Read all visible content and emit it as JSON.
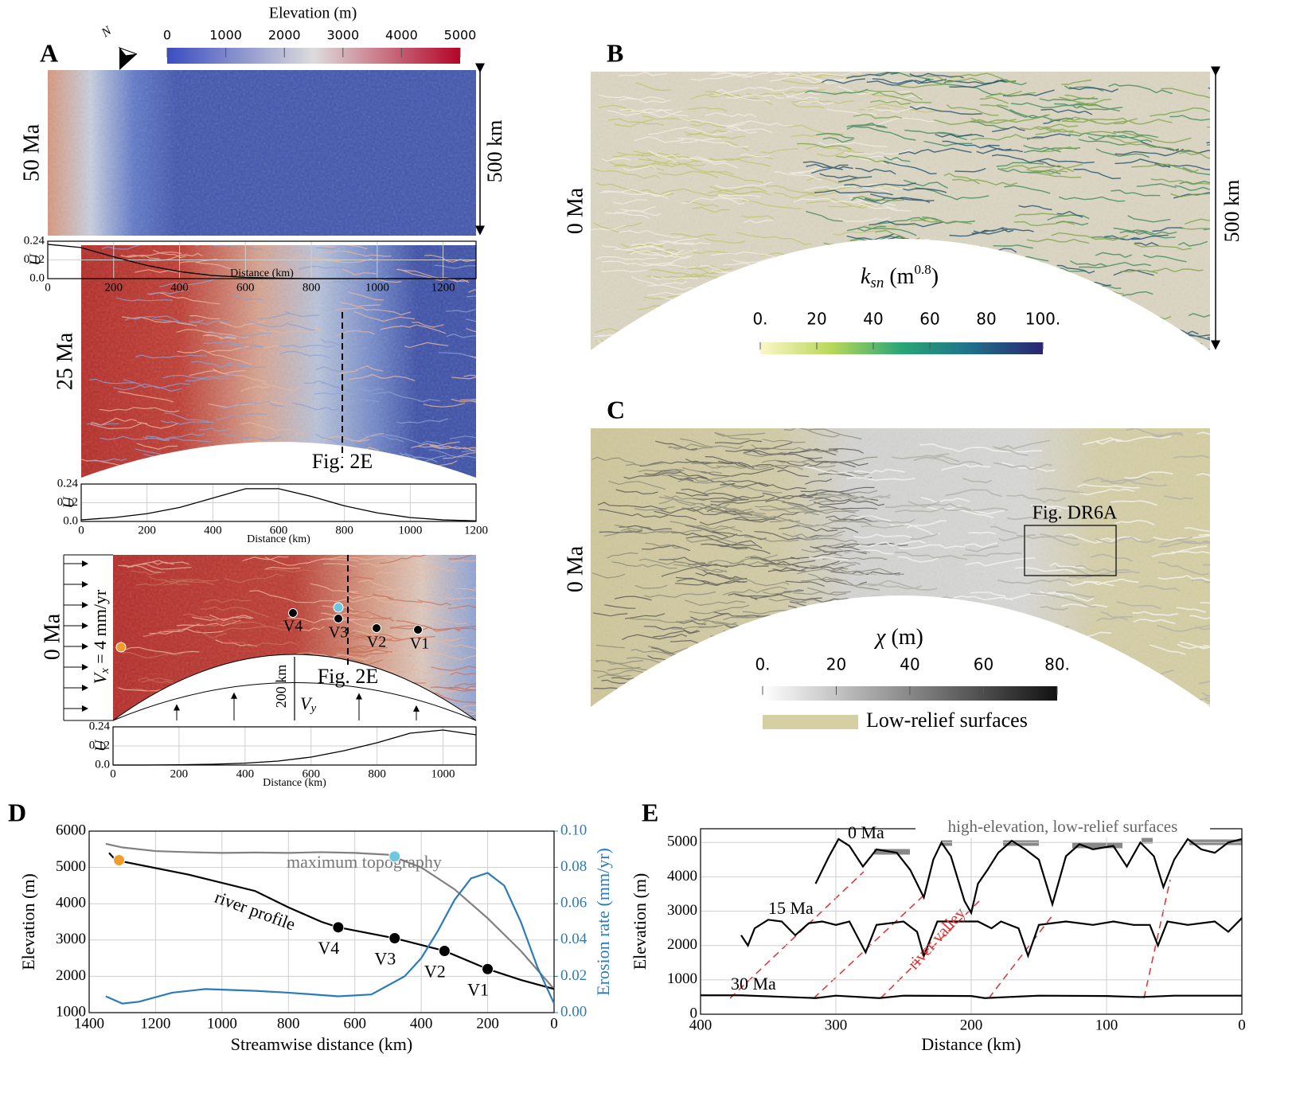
{
  "figure": {
    "panel_labels": [
      "A",
      "B",
      "C",
      "D",
      "E"
    ],
    "panel_a": {
      "colorbar": {
        "title": "Elevation (m)",
        "lim": [
          0,
          5000
        ],
        "ticks": [
          0,
          1000,
          2000,
          3000,
          4000,
          5000
        ]
      },
      "north": "N",
      "maps": [
        {
          "age": "50 Ma",
          "scale": "500 km"
        },
        {
          "age": "25 Ma",
          "ref": "Fig. 2E"
        },
        {
          "age": "0 Ma",
          "ref": "Fig. 2E",
          "vx_symbol": "V",
          "vx_sub": "x",
          "vx_text": " = 4 mm/yr",
          "width": "200 km",
          "vy_symbol": "V",
          "vy_sub": "y",
          "points": [
            "V4",
            "V3",
            "V2",
            "V1"
          ]
        }
      ]
    },
    "panel_b": {
      "age": "0 Ma",
      "scale": "500 km",
      "colorbar": {
        "symbol": "k",
        "sub": "sn",
        "unit": " (m",
        "sup": "0.8",
        "close": ")",
        "lim": [
          0,
          100
        ],
        "ticks": [
          {
            "value": 0,
            "label": "0."
          },
          20,
          40,
          60,
          80,
          {
            "value": 100,
            "label": "100."
          }
        ]
      }
    },
    "panel_c": {
      "age": "0 Ma",
      "ref": "Fig. DR6A",
      "colorbar": {
        "symbol": "χ",
        "unit": " (m)",
        "lim": [
          0,
          80
        ],
        "ticks": [
          {
            "value": 0,
            "label": "0."
          },
          20,
          40,
          60,
          {
            "value": 80,
            "label": "80."
          }
        ]
      },
      "legend": "Low-relief surfaces"
    }
  },
  "chart_data": [
    {
      "type": "line",
      "ylabel": "U",
      "xlabel": "Distance (km)",
      "color": "#000000",
      "grid": true,
      "x": [
        0,
        100,
        200,
        300,
        400,
        500,
        600,
        700,
        800,
        900,
        1000,
        1100,
        1200,
        1300
      ],
      "values": [
        0.22,
        0.2,
        0.14,
        0.085,
        0.045,
        0.02,
        0.008,
        0.003,
        0,
        0,
        0,
        0,
        0,
        0
      ],
      "xlim": [
        0,
        1300
      ],
      "ylim": [
        0,
        0.24
      ],
      "xticks": [
        0,
        200,
        400,
        600,
        800,
        1000,
        1200
      ],
      "yticks": [
        {
          "value": 0,
          "label": "0.0"
        },
        0.12,
        0.24
      ]
    },
    {
      "type": "line",
      "ylabel": "U",
      "xlabel": "Distance (km)",
      "color": "#000000",
      "grid": true,
      "x": [
        0,
        100,
        200,
        300,
        400,
        500,
        600,
        700,
        800,
        900,
        1000,
        1100,
        1200
      ],
      "values": [
        0.01,
        0.025,
        0.05,
        0.09,
        0.15,
        0.21,
        0.21,
        0.16,
        0.1,
        0.055,
        0.025,
        0.01,
        0.004
      ],
      "xlim": [
        0,
        1200
      ],
      "ylim": [
        0,
        0.24
      ],
      "xticks": [
        0,
        200,
        400,
        600,
        800,
        1000,
        1200
      ],
      "yticks": [
        {
          "value": 0,
          "label": "0.0"
        },
        0.12,
        0.24
      ]
    },
    {
      "type": "line",
      "ylabel": "U",
      "xlabel": "Distance (km)",
      "color": "#000000",
      "grid": true,
      "x": [
        0,
        100,
        200,
        300,
        400,
        500,
        600,
        700,
        800,
        900,
        1000,
        1100
      ],
      "values": [
        0,
        0,
        0.002,
        0.005,
        0.012,
        0.025,
        0.05,
        0.09,
        0.14,
        0.2,
        0.22,
        0.19
      ],
      "xlim": [
        0,
        1100
      ],
      "ylim": [
        0,
        0.24
      ],
      "xticks": [
        0,
        200,
        400,
        600,
        800,
        1000
      ],
      "yticks": [
        {
          "value": 0,
          "label": "0.0"
        },
        0.12,
        0.24
      ]
    },
    {
      "type": "line",
      "xlabel": "Streamwise distance (km)",
      "ylabel": "Elevation (m)",
      "y2label": "Erosion rate (mm/yr)",
      "grid": true,
      "xlim": [
        1400,
        0
      ],
      "ylim": [
        1000,
        6000
      ],
      "y2lim": [
        0,
        0.1
      ],
      "xticks": [
        1400,
        1200,
        1000,
        800,
        600,
        400,
        200,
        0
      ],
      "yticks": [
        1000,
        2000,
        3000,
        4000,
        5000,
        6000
      ],
      "y2ticks": [
        {
          "value": 0,
          "label": "0.00"
        },
        0.02,
        0.04,
        0.06,
        0.08,
        {
          "value": 0.1,
          "label": "0.10"
        }
      ],
      "series": [
        {
          "name": "maximum topography",
          "color": "#808080",
          "x": [
            1350,
            1300,
            1200,
            1100,
            1000,
            900,
            800,
            700,
            600,
            500,
            400,
            300,
            200,
            100,
            0
          ],
          "values": [
            5650,
            5550,
            5450,
            5420,
            5400,
            5410,
            5400,
            5420,
            5400,
            5350,
            5000,
            4400,
            3600,
            2700,
            1650
          ]
        },
        {
          "name": "river profile",
          "color": "#000000",
          "x": [
            1340,
            1320,
            1100,
            900,
            800,
            700,
            650,
            480,
            330,
            200,
            100,
            0
          ],
          "values": [
            5400,
            5200,
            4800,
            4350,
            3900,
            3500,
            3350,
            3050,
            2700,
            2200,
            1900,
            1650
          ]
        },
        {
          "color": "#2b7bb9",
          "axis": "y2",
          "x": [
            1350,
            1300,
            1250,
            1150,
            1050,
            900,
            800,
            650,
            550,
            450,
            400,
            350,
            300,
            250,
            200,
            150,
            100,
            50,
            0
          ],
          "values": [
            0.009,
            0.005,
            0.006,
            0.011,
            0.013,
            0.012,
            0.011,
            0.009,
            0.01,
            0.02,
            0.03,
            0.045,
            0.062,
            0.074,
            0.077,
            0.07,
            0.05,
            0.025,
            0.005
          ]
        }
      ],
      "points": [
        {
          "x": 1310,
          "y": 5200,
          "color": "#f39c2b"
        },
        {
          "x": 480,
          "y": 5300,
          "color": "#6ec6e0"
        },
        {
          "x": 650,
          "y": 3350,
          "color": "#000000",
          "label": "V4"
        },
        {
          "x": 480,
          "y": 3050,
          "color": "#000000",
          "label": "V3"
        },
        {
          "x": 330,
          "y": 2700,
          "color": "#000000",
          "label": "V2"
        },
        {
          "x": 200,
          "y": 2200,
          "color": "#000000",
          "label": "V1"
        }
      ]
    },
    {
      "type": "line",
      "xlabel": "Distance (km)",
      "ylabel": "Elevation (m)",
      "grid": true,
      "xlim": [
        400,
        0
      ],
      "ylim": [
        0,
        5400
      ],
      "xticks": [
        400,
        300,
        200,
        100,
        0
      ],
      "yticks": [
        0,
        1000,
        2000,
        3000,
        4000,
        5000
      ],
      "annotation": "high-elevation, low-relief surfaces",
      "valley_label": "river valley",
      "series": [
        {
          "name": "0 Ma",
          "color": "#000000",
          "x": [
            315,
            305,
            298,
            290,
            280,
            270,
            255,
            245,
            235,
            228,
            222,
            215,
            205,
            200,
            195,
            188,
            180,
            170,
            160,
            150,
            140,
            130,
            120,
            110,
            95,
            85,
            75,
            65,
            58,
            50,
            40,
            30,
            20,
            10,
            0
          ],
          "values": [
            3800,
            4600,
            5100,
            4900,
            4300,
            4800,
            4700,
            4200,
            3400,
            4500,
            5000,
            4600,
            3300,
            2950,
            3800,
            4200,
            4700,
            5050,
            4800,
            4500,
            3200,
            4600,
            4950,
            4800,
            4900,
            4300,
            5000,
            4600,
            3700,
            4500,
            5100,
            4800,
            4700,
            5000,
            5100
          ]
        },
        {
          "name": "15 Ma",
          "color": "#000000",
          "x": [
            370,
            365,
            360,
            350,
            340,
            330,
            320,
            310,
            300,
            290,
            278,
            270,
            250,
            240,
            235,
            225,
            210,
            195,
            185,
            178,
            165,
            158,
            150,
            130,
            110,
            95,
            80,
            68,
            62,
            55,
            40,
            20,
            10,
            0
          ],
          "values": [
            2300,
            2000,
            2500,
            2750,
            2700,
            2300,
            2650,
            2700,
            2600,
            2700,
            1800,
            2600,
            2700,
            2400,
            1700,
            2700,
            2700,
            2700,
            2500,
            2700,
            2500,
            1700,
            2600,
            2700,
            2600,
            2700,
            2600,
            2600,
            2000,
            2700,
            2600,
            2700,
            2400,
            2800
          ]
        },
        {
          "name": "30 Ma",
          "color": "#000000",
          "x": [
            400,
            370,
            315,
            300,
            268,
            250,
            200,
            190,
            150,
            100,
            75,
            50,
            0
          ],
          "values": [
            550,
            550,
            470,
            540,
            470,
            540,
            530,
            470,
            540,
            530,
            500,
            540,
            540
          ]
        }
      ]
    }
  ]
}
